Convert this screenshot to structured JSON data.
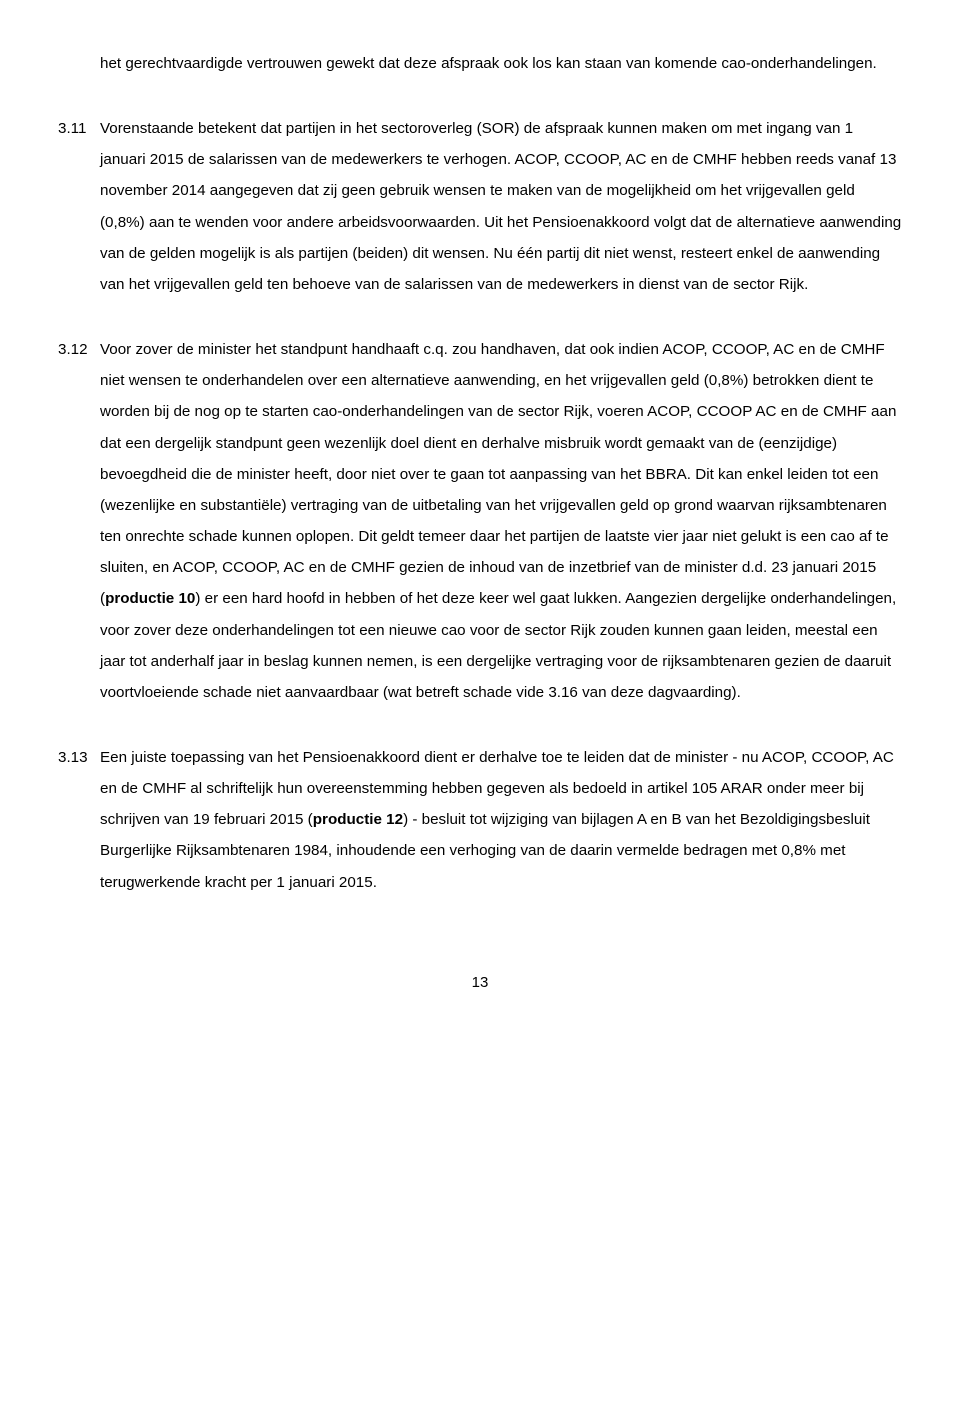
{
  "s1": {
    "cont": "het gerechtvaardigde vertrouwen gewekt dat deze afspraak ook los kan staan van komende cao-onderhandelingen."
  },
  "s2": {
    "num": "3.11",
    "body": "Vorenstaande betekent dat partijen in het sectoroverleg (SOR) de afspraak kunnen maken om met ingang van 1 januari 2015 de salarissen van de medewerkers te verhogen. ACOP, CCOOP, AC en de CMHF hebben reeds vanaf 13 november 2014 aangegeven dat zij geen gebruik wensen te maken van de mogelijkheid om het vrijgevallen geld (0,8%) aan te wenden voor andere arbeidsvoorwaarden. Uit het Pensioenakkoord volgt dat de alternatieve aanwending van de gelden mogelijk is als partijen (beiden) dit wensen. Nu één partij dit niet wenst, resteert enkel de aanwending van het vrijgevallen geld ten behoeve van de salarissen van de medewerkers in dienst van de sector Rijk."
  },
  "s3": {
    "num": "3.12",
    "body_a": "Voor zover de minister het standpunt handhaaft c.q. zou handhaven, dat ook indien ACOP, CCOOP, AC en de CMHF niet wensen te onderhandelen over een alternatieve aanwending, en het vrijgevallen geld (0,8%) betrokken dient te worden bij de nog op te starten cao-onderhandelingen van de sector Rijk, voeren ACOP, CCOOP AC en de CMHF aan dat een dergelijk standpunt geen wezenlijk doel dient en derhalve misbruik wordt gemaakt van de (eenzijdige) bevoegdheid die de minister heeft, door niet over te gaan tot aanpassing van het BBRA. Dit kan enkel leiden tot een (wezenlijke en substantiële) vertraging van de uitbetaling van het vrijgevallen geld op grond waarvan rijksambtenaren ten onrechte schade kunnen oplopen. Dit geldt temeer daar het partijen de laatste vier jaar niet gelukt is een cao af te sluiten, en ACOP, CCOOP, AC en de CMHF gezien de inhoud van de inzetbrief van de minister d.d. 23 januari 2015 (",
    "bold_1": "productie 10",
    "body_b": ") er een hard hoofd in hebben of het deze keer wel gaat lukken. Aangezien dergelijke onderhandelingen, voor zover deze onderhandelingen tot een nieuwe cao voor de sector Rijk zouden kunnen gaan leiden, meestal een jaar tot anderhalf jaar in beslag kunnen nemen, is een dergelijke vertraging voor de rijksambtenaren gezien de daaruit voortvloeiende schade niet aanvaardbaar (wat betreft schade vide 3.16 van deze dagvaarding)."
  },
  "s4": {
    "num": "3.13",
    "body_a": "Een juiste toepassing van het Pensioenakkoord dient er derhalve toe te leiden dat de minister - nu ACOP, CCOOP, AC en de CMHF al schriftelijk hun overeenstemming hebben gegeven als bedoeld in artikel 105 ARAR onder meer bij schrijven van 19 februari 2015 (",
    "bold_1": "productie 12",
    "body_b": ") - besluit tot wijziging van bijlagen A en B van het Bezoldigingsbesluit Burgerlijke Rijksambtenaren 1984, inhoudende een verhoging van de daarin vermelde bedragen met 0,8% met terugwerkende kracht per 1 januari 2015."
  },
  "page_number": "13"
}
